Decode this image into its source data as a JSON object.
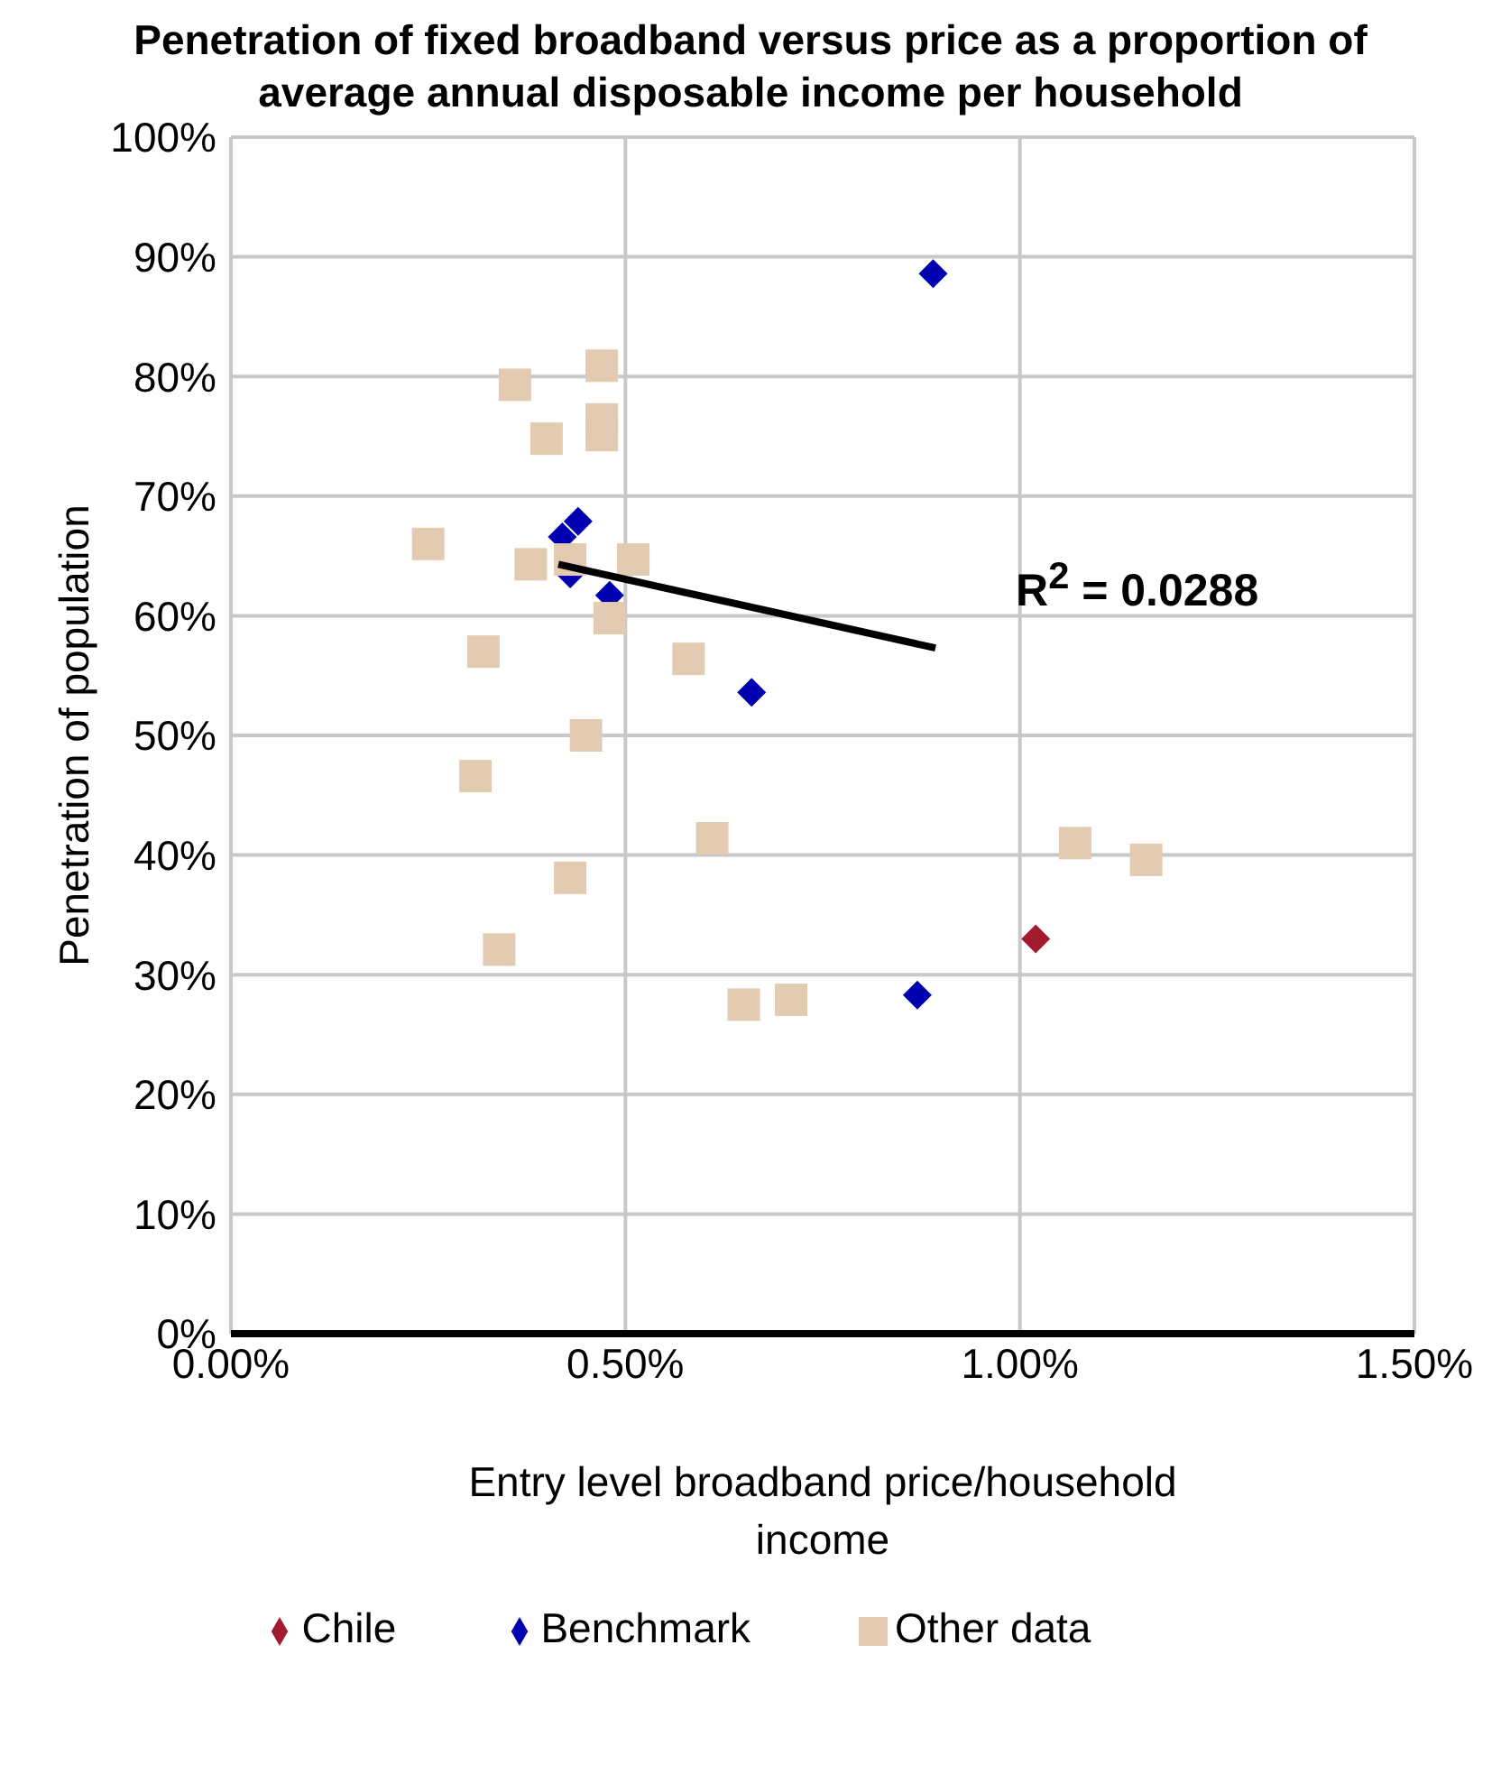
{
  "chart_data": {
    "type": "scatter",
    "title": "Penetration of fixed broadband versus price as a proportion of average annual disposable income per household",
    "xlabel": "Entry level broadband price/household income",
    "ylabel": "Penetration of population",
    "xlim": [
      0,
      1.5
    ],
    "xticks": [
      {
        "value": 0,
        "label": "0.00%"
      },
      {
        "value": 0.5,
        "label": "0.50%"
      },
      {
        "value": 1,
        "label": "1.00%"
      },
      {
        "value": 1.5,
        "label": "1.50%"
      }
    ],
    "ylim": [
      0,
      100
    ],
    "yticks": [
      {
        "value": 0,
        "label": "0%"
      },
      {
        "value": 10,
        "label": "10%"
      },
      {
        "value": 20,
        "label": "20%"
      },
      {
        "value": 30,
        "label": "30%"
      },
      {
        "value": 40,
        "label": "40%"
      },
      {
        "value": 50,
        "label": "50%"
      },
      {
        "value": 60,
        "label": "60%"
      },
      {
        "value": 70,
        "label": "70%"
      },
      {
        "value": 80,
        "label": "80%"
      },
      {
        "value": 90,
        "label": "90%"
      },
      {
        "value": 100,
        "label": "100%"
      }
    ],
    "grid": true,
    "legend": "bottom",
    "series": [
      {
        "name": "Chile",
        "color": "#a31a2f",
        "marker": "diamond",
        "x": [
          1.02
        ],
        "values": [
          33
        ]
      },
      {
        "name": "Benchmark",
        "color": "#0000b0",
        "marker": "diamond",
        "x": [
          0.89,
          0.66,
          0.87,
          0.44,
          0.42,
          0.43,
          0.48
        ],
        "values": [
          88.6,
          53.6,
          28.3,
          67.9,
          66.6,
          63.5,
          61.7
        ]
      },
      {
        "name": "Other data",
        "color": "#e3cbb1",
        "marker": "square",
        "x": [
          0.36,
          0.47,
          0.4,
          0.47,
          0.47,
          0.25,
          0.38,
          0.43,
          0.51,
          0.48,
          0.32,
          0.58,
          0.31,
          0.45,
          0.61,
          0.43,
          0.34,
          0.65,
          0.71,
          1.07,
          1.16
        ],
        "values": [
          79.3,
          80.9,
          74.8,
          76.4,
          75.1,
          66,
          64.3,
          64.7,
          64.7,
          59.8,
          57,
          56.4,
          46.6,
          50,
          41.4,
          38.1,
          32.1,
          27.5,
          27.9,
          41,
          39.6
        ]
      },
      {
        "type": "line",
        "color": "#000000",
        "marker": "none",
        "x": [
          0.415,
          0.893
        ],
        "values": [
          64.3,
          57.3
        ]
      }
    ],
    "annotations": [
      "R$^{2}$ = 0.0288"
    ]
  }
}
